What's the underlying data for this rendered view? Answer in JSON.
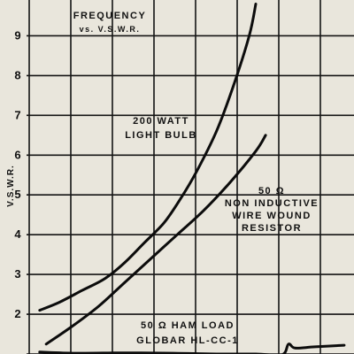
{
  "chart_data": {
    "type": "line",
    "title": [
      "FREQUENCY",
      "vs. V.S.W.R."
    ],
    "ylabel": "V.S.W.R.",
    "xlabel": "",
    "ylim": [
      1,
      9.9
    ],
    "y_ticks": [
      "2",
      "3",
      "4",
      "5",
      "6",
      "7",
      "8",
      "9"
    ],
    "grid": true,
    "series": [
      {
        "name": [
          "200 WATT",
          "LIGHT BULB"
        ],
        "x": [
          0.04,
          0.1,
          0.17,
          0.24,
          0.3,
          0.36,
          0.42,
          0.47,
          0.52,
          0.58,
          0.63,
          0.68,
          0.7
        ],
        "y": [
          2.1,
          2.3,
          2.6,
          2.9,
          3.3,
          3.8,
          4.3,
          4.9,
          5.6,
          6.6,
          7.7,
          9.0,
          9.8
        ]
      },
      {
        "name": [
          "50 Ω",
          "NON INDUCTIVE",
          "WIRE WOUND",
          "RESISTOR"
        ],
        "x": [
          0.06,
          0.14,
          0.22,
          0.3,
          0.38,
          0.46,
          0.54,
          0.62,
          0.7,
          0.73
        ],
        "y": [
          1.25,
          1.7,
          2.2,
          2.8,
          3.4,
          4.0,
          4.6,
          5.3,
          6.1,
          6.5
        ]
      },
      {
        "name": [
          "50 Ω HAM LOAD",
          "GLOBAR HL-CC-1"
        ],
        "x": [
          0.04,
          0.15,
          0.3,
          0.45,
          0.58,
          0.7,
          0.78,
          0.8,
          0.82,
          0.88,
          0.97
        ],
        "y": [
          1.05,
          1.02,
          1.03,
          1.02,
          1.0,
          1.0,
          0.98,
          1.25,
          1.15,
          1.18,
          1.22
        ]
      }
    ]
  }
}
